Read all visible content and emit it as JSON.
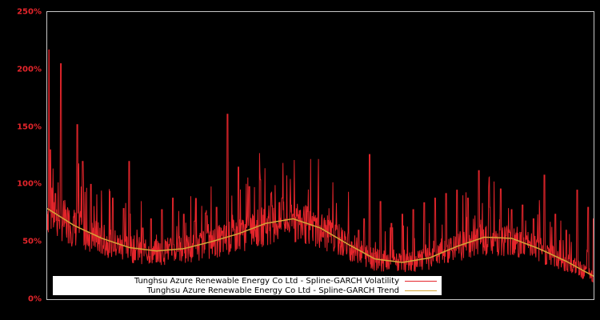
{
  "chart_data": {
    "type": "line",
    "title": "",
    "xlabel": "",
    "ylabel": "",
    "ylim": [
      0,
      250
    ],
    "yticks": [
      "0%",
      "50%",
      "100%",
      "150%",
      "200%",
      "250%"
    ],
    "ytick_values": [
      0,
      50,
      100,
      150,
      200,
      250
    ],
    "grid": false,
    "legend_position": "lower-left (inside plot)",
    "background": "#000000",
    "axis_color": "#c8c8c8",
    "tick_label_color": "#e4252b",
    "x_positions_note": "x is normalized time from 0 (start) to 1 (end); no x tick labels shown",
    "series": [
      {
        "name": "Tunghsu Azure Renewable Energy Co Ltd - Spline-GARCH Volatility",
        "color": "#e4252b",
        "x": [
          0.0,
          0.003,
          0.006,
          0.01,
          0.015,
          0.022,
          0.025,
          0.03,
          0.04,
          0.05,
          0.055,
          0.06,
          0.065,
          0.07,
          0.08,
          0.09,
          0.1,
          0.11,
          0.12,
          0.13,
          0.14,
          0.15,
          0.16,
          0.175,
          0.18,
          0.19,
          0.2,
          0.21,
          0.22,
          0.23,
          0.24,
          0.25,
          0.26,
          0.27,
          0.28,
          0.29,
          0.3,
          0.31,
          0.32,
          0.33,
          0.34,
          0.35,
          0.36,
          0.37,
          0.38,
          0.39,
          0.4,
          0.41,
          0.42,
          0.43,
          0.44,
          0.45,
          0.46,
          0.47,
          0.48,
          0.49,
          0.5,
          0.51,
          0.52,
          0.53,
          0.54,
          0.55,
          0.56,
          0.57,
          0.58,
          0.59,
          0.6,
          0.61,
          0.62,
          0.63,
          0.64,
          0.65,
          0.66,
          0.67,
          0.68,
          0.69,
          0.7,
          0.71,
          0.72,
          0.73,
          0.74,
          0.75,
          0.76,
          0.77,
          0.78,
          0.79,
          0.8,
          0.81,
          0.82,
          0.83,
          0.84,
          0.85,
          0.86,
          0.87,
          0.88,
          0.89,
          0.9,
          0.91,
          0.92,
          0.93,
          0.94,
          0.95,
          0.96,
          0.97,
          0.98,
          0.99,
          1.0
        ],
        "values": [
          60,
          217,
          130,
          55,
          92,
          50,
          205,
          48,
          72,
          44,
          152,
          60,
          120,
          42,
          100,
          40,
          60,
          38,
          88,
          36,
          79,
          120,
          34,
          62,
          33,
          70,
          32,
          78,
          36,
          88,
          35,
          74,
          40,
          68,
          42,
          75,
          44,
          80,
          55,
          161,
          48,
          115,
          52,
          98,
          60,
          104,
          58,
          92,
          62,
          88,
          55,
          74,
          48,
          70,
          44,
          68,
          38,
          60,
          30,
          54,
          28,
          48,
          26,
          60,
          70,
          126,
          40,
          85,
          28,
          66,
          30,
          74,
          34,
          78,
          36,
          84,
          38,
          88,
          40,
          92,
          42,
          95,
          44,
          88,
          48,
          112,
          42,
          80,
          38,
          96,
          36,
          78,
          34,
          82,
          32,
          70,
          30,
          108,
          28,
          74,
          26,
          60,
          22,
          95,
          18,
          80,
          70
        ]
      },
      {
        "name": "Tunghsu Azure Renewable Energy Co Ltd - Spline-GARCH Trend",
        "color": "#d4a537",
        "x": [
          0.0,
          0.05,
          0.1,
          0.15,
          0.2,
          0.25,
          0.3,
          0.35,
          0.4,
          0.45,
          0.5,
          0.55,
          0.6,
          0.65,
          0.7,
          0.75,
          0.8,
          0.85,
          0.9,
          0.95,
          1.0
        ],
        "values": [
          79,
          64,
          53,
          45,
          42,
          44,
          50,
          57,
          66,
          70,
          62,
          48,
          35,
          32,
          36,
          46,
          54,
          53,
          44,
          33,
          20
        ]
      }
    ]
  },
  "legend": {
    "items": [
      {
        "label": "Tunghsu Azure Renewable Energy Co Ltd - Spline-GARCH Volatility",
        "color": "#e4252b"
      },
      {
        "label": "Tunghsu Azure Renewable Energy Co Ltd - Spline-GARCH Trend",
        "color": "#d4a537"
      }
    ]
  }
}
